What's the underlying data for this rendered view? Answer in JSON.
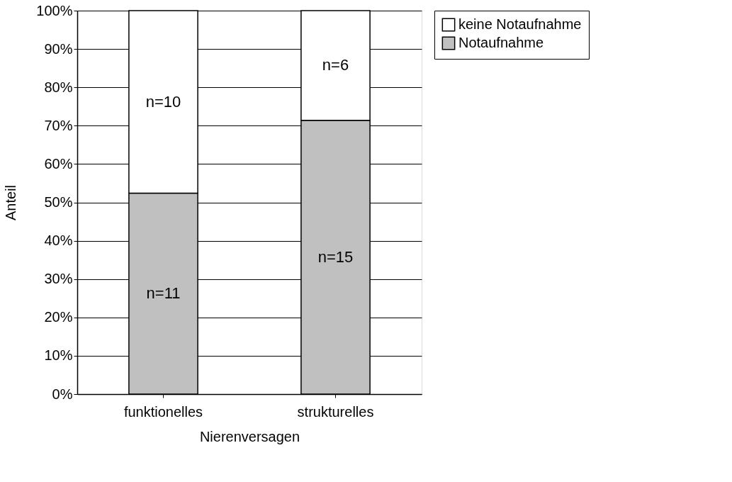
{
  "chart_data": {
    "type": "bar",
    "stacked": true,
    "xlabel": "Nierenversagen",
    "ylabel": "Anteil",
    "categories": [
      "funktionelles",
      "strukturelles"
    ],
    "series": [
      {
        "name": "Notaufnahme",
        "color": "#c0c0c0",
        "values": [
          52.4,
          71.4
        ]
      },
      {
        "name": "keine Notaufnahme",
        "color": "#ffffff",
        "values": [
          47.6,
          28.6
        ]
      }
    ],
    "annotations": [
      "n=11",
      "n=15",
      "n=10",
      "n=6"
    ],
    "ylim": [
      0,
      100
    ],
    "yticks": [
      {
        "value": 0,
        "label": "0%"
      },
      {
        "value": 10,
        "label": "10%"
      },
      {
        "value": 20,
        "label": "20%"
      },
      {
        "value": 30,
        "label": "30%"
      },
      {
        "value": 40,
        "label": "40%"
      },
      {
        "value": 50,
        "label": "50%"
      },
      {
        "value": 60,
        "label": "60%"
      },
      {
        "value": 70,
        "label": "70%"
      },
      {
        "value": 80,
        "label": "80%"
      },
      {
        "value": 90,
        "label": "90%"
      },
      {
        "value": 100,
        "label": "100%"
      }
    ],
    "grid": "y",
    "legend": "right"
  }
}
